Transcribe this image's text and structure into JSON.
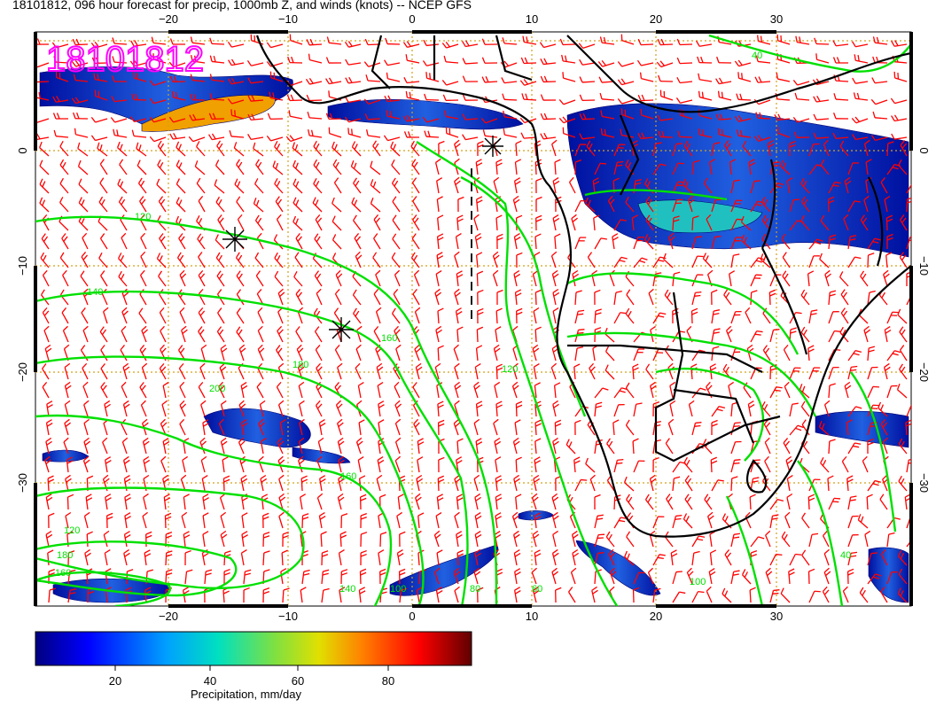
{
  "title": "18101812, 096 hour forecast for precip, 1000mb Z, and winds (knots) -- NCEP GFS",
  "stamp": "18101812",
  "stamp_color": "#ff00ff",
  "map": {
    "lon_ticks": [
      "−20",
      "−10",
      "0",
      "10",
      "20",
      "30"
    ],
    "lat_ticks": [
      "0",
      "−10",
      "−20",
      "−30"
    ],
    "contour_labels": [
      "40",
      "120",
      "140",
      "160",
      "180",
      "200",
      "160",
      "120",
      "180",
      "160",
      "140",
      "100",
      "80",
      "60",
      "120",
      "100",
      "40"
    ],
    "contour_color": "#00e000",
    "barb_color": "#ff0000",
    "coast_color": "#000000",
    "grid_color": "#d4a017"
  },
  "colorbar": {
    "ticks": [
      "20",
      "40",
      "60",
      "80"
    ],
    "label": "Precipitation, mm/day"
  }
}
